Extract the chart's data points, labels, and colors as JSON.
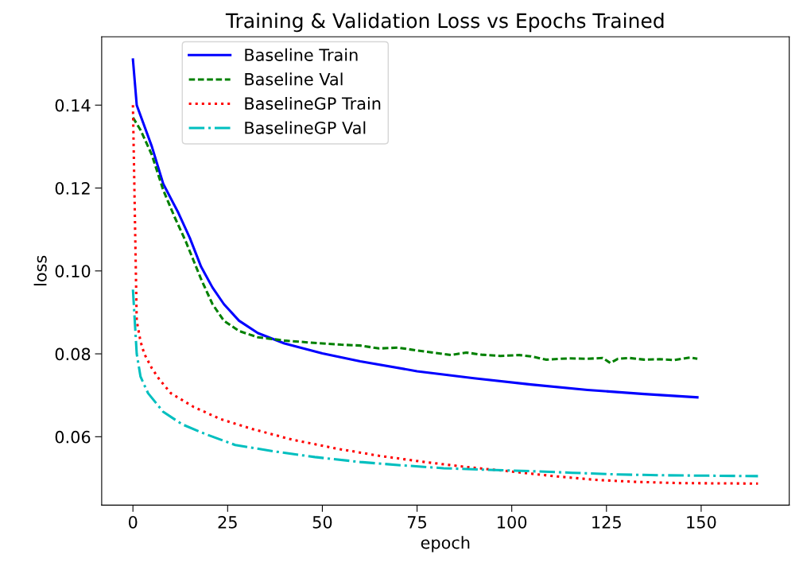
{
  "chart_data": {
    "type": "line",
    "title": "Training & Validation Loss vs Epochs Trained",
    "xlabel": "epoch",
    "ylabel": "loss",
    "xlim": [
      -8.25,
      173.25
    ],
    "xticks": [
      0,
      25,
      50,
      75,
      100,
      125,
      150
    ],
    "ylim": [
      0.0435,
      0.1565
    ],
    "yticks": [
      {
        "value": 0.06,
        "label": "0.06"
      },
      {
        "value": 0.08,
        "label": "0.08"
      },
      {
        "value": 0.1,
        "label": "0.10"
      },
      {
        "value": 0.12,
        "label": "0.12"
      },
      {
        "value": 0.14,
        "label": "0.14"
      }
    ],
    "grid": false,
    "legend": "top left",
    "marker": "none",
    "series": [
      {
        "name": "Baseline Train",
        "color": "#0000ff",
        "line_style": "solid",
        "x": [
          0,
          1,
          5,
          8,
          12,
          15,
          18,
          21,
          24,
          28,
          33,
          40,
          50,
          60,
          75,
          90,
          105,
          120,
          135,
          149
        ],
        "values": [
          0.151,
          0.14,
          0.13,
          0.121,
          0.114,
          0.108,
          0.101,
          0.096,
          0.092,
          0.088,
          0.085,
          0.0825,
          0.0801,
          0.0782,
          0.0758,
          0.0741,
          0.0726,
          0.0713,
          0.0703,
          0.0695
        ]
      },
      {
        "name": "Baseline Val",
        "color": "#008000",
        "line_style": "dashed",
        "x": [
          0,
          2,
          5,
          8,
          11,
          14,
          18,
          21,
          24,
          28,
          33,
          40,
          47,
          55,
          60,
          65,
          70,
          75,
          80,
          84,
          88,
          92,
          97,
          102,
          105,
          109,
          115,
          120,
          124,
          126,
          128,
          131,
          135,
          139,
          143,
          147,
          149
        ],
        "values": [
          0.137,
          0.134,
          0.128,
          0.1195,
          0.113,
          0.107,
          0.098,
          0.092,
          0.088,
          0.0855,
          0.084,
          0.0832,
          0.0827,
          0.0822,
          0.082,
          0.0813,
          0.0815,
          0.0808,
          0.0802,
          0.0797,
          0.0803,
          0.0798,
          0.0795,
          0.0797,
          0.0794,
          0.0786,
          0.0789,
          0.0788,
          0.079,
          0.0778,
          0.0788,
          0.079,
          0.0786,
          0.0787,
          0.0785,
          0.0791,
          0.0788
        ]
      },
      {
        "name": "BaselineGP Train",
        "color": "#ff0000",
        "line_style": "dotted",
        "x": [
          0,
          1,
          2,
          3,
          5,
          7,
          10,
          16,
          23,
          31,
          42,
          54,
          65,
          77,
          88,
          99,
          110,
          122,
          133,
          145,
          165
        ],
        "values": [
          0.14,
          0.088,
          0.083,
          0.08,
          0.0765,
          0.0738,
          0.0705,
          0.0672,
          0.0643,
          0.062,
          0.0593,
          0.0571,
          0.0554,
          0.0539,
          0.0527,
          0.0517,
          0.0506,
          0.0496,
          0.0491,
          0.0488,
          0.0487
        ]
      },
      {
        "name": "BaselineGP Val",
        "color": "#00bfbf",
        "line_style": "dashdot",
        "x": [
          0,
          1,
          2,
          4,
          8,
          13,
          19,
          27,
          37,
          48,
          60,
          71,
          82,
          94,
          105,
          116,
          128,
          140,
          152,
          165
        ],
        "values": [
          0.0955,
          0.08,
          0.0745,
          0.0705,
          0.066,
          0.063,
          0.0607,
          0.058,
          0.0565,
          0.0551,
          0.0539,
          0.0531,
          0.0524,
          0.052,
          0.0517,
          0.0513,
          0.0509,
          0.0507,
          0.0506,
          0.0505
        ]
      }
    ]
  }
}
